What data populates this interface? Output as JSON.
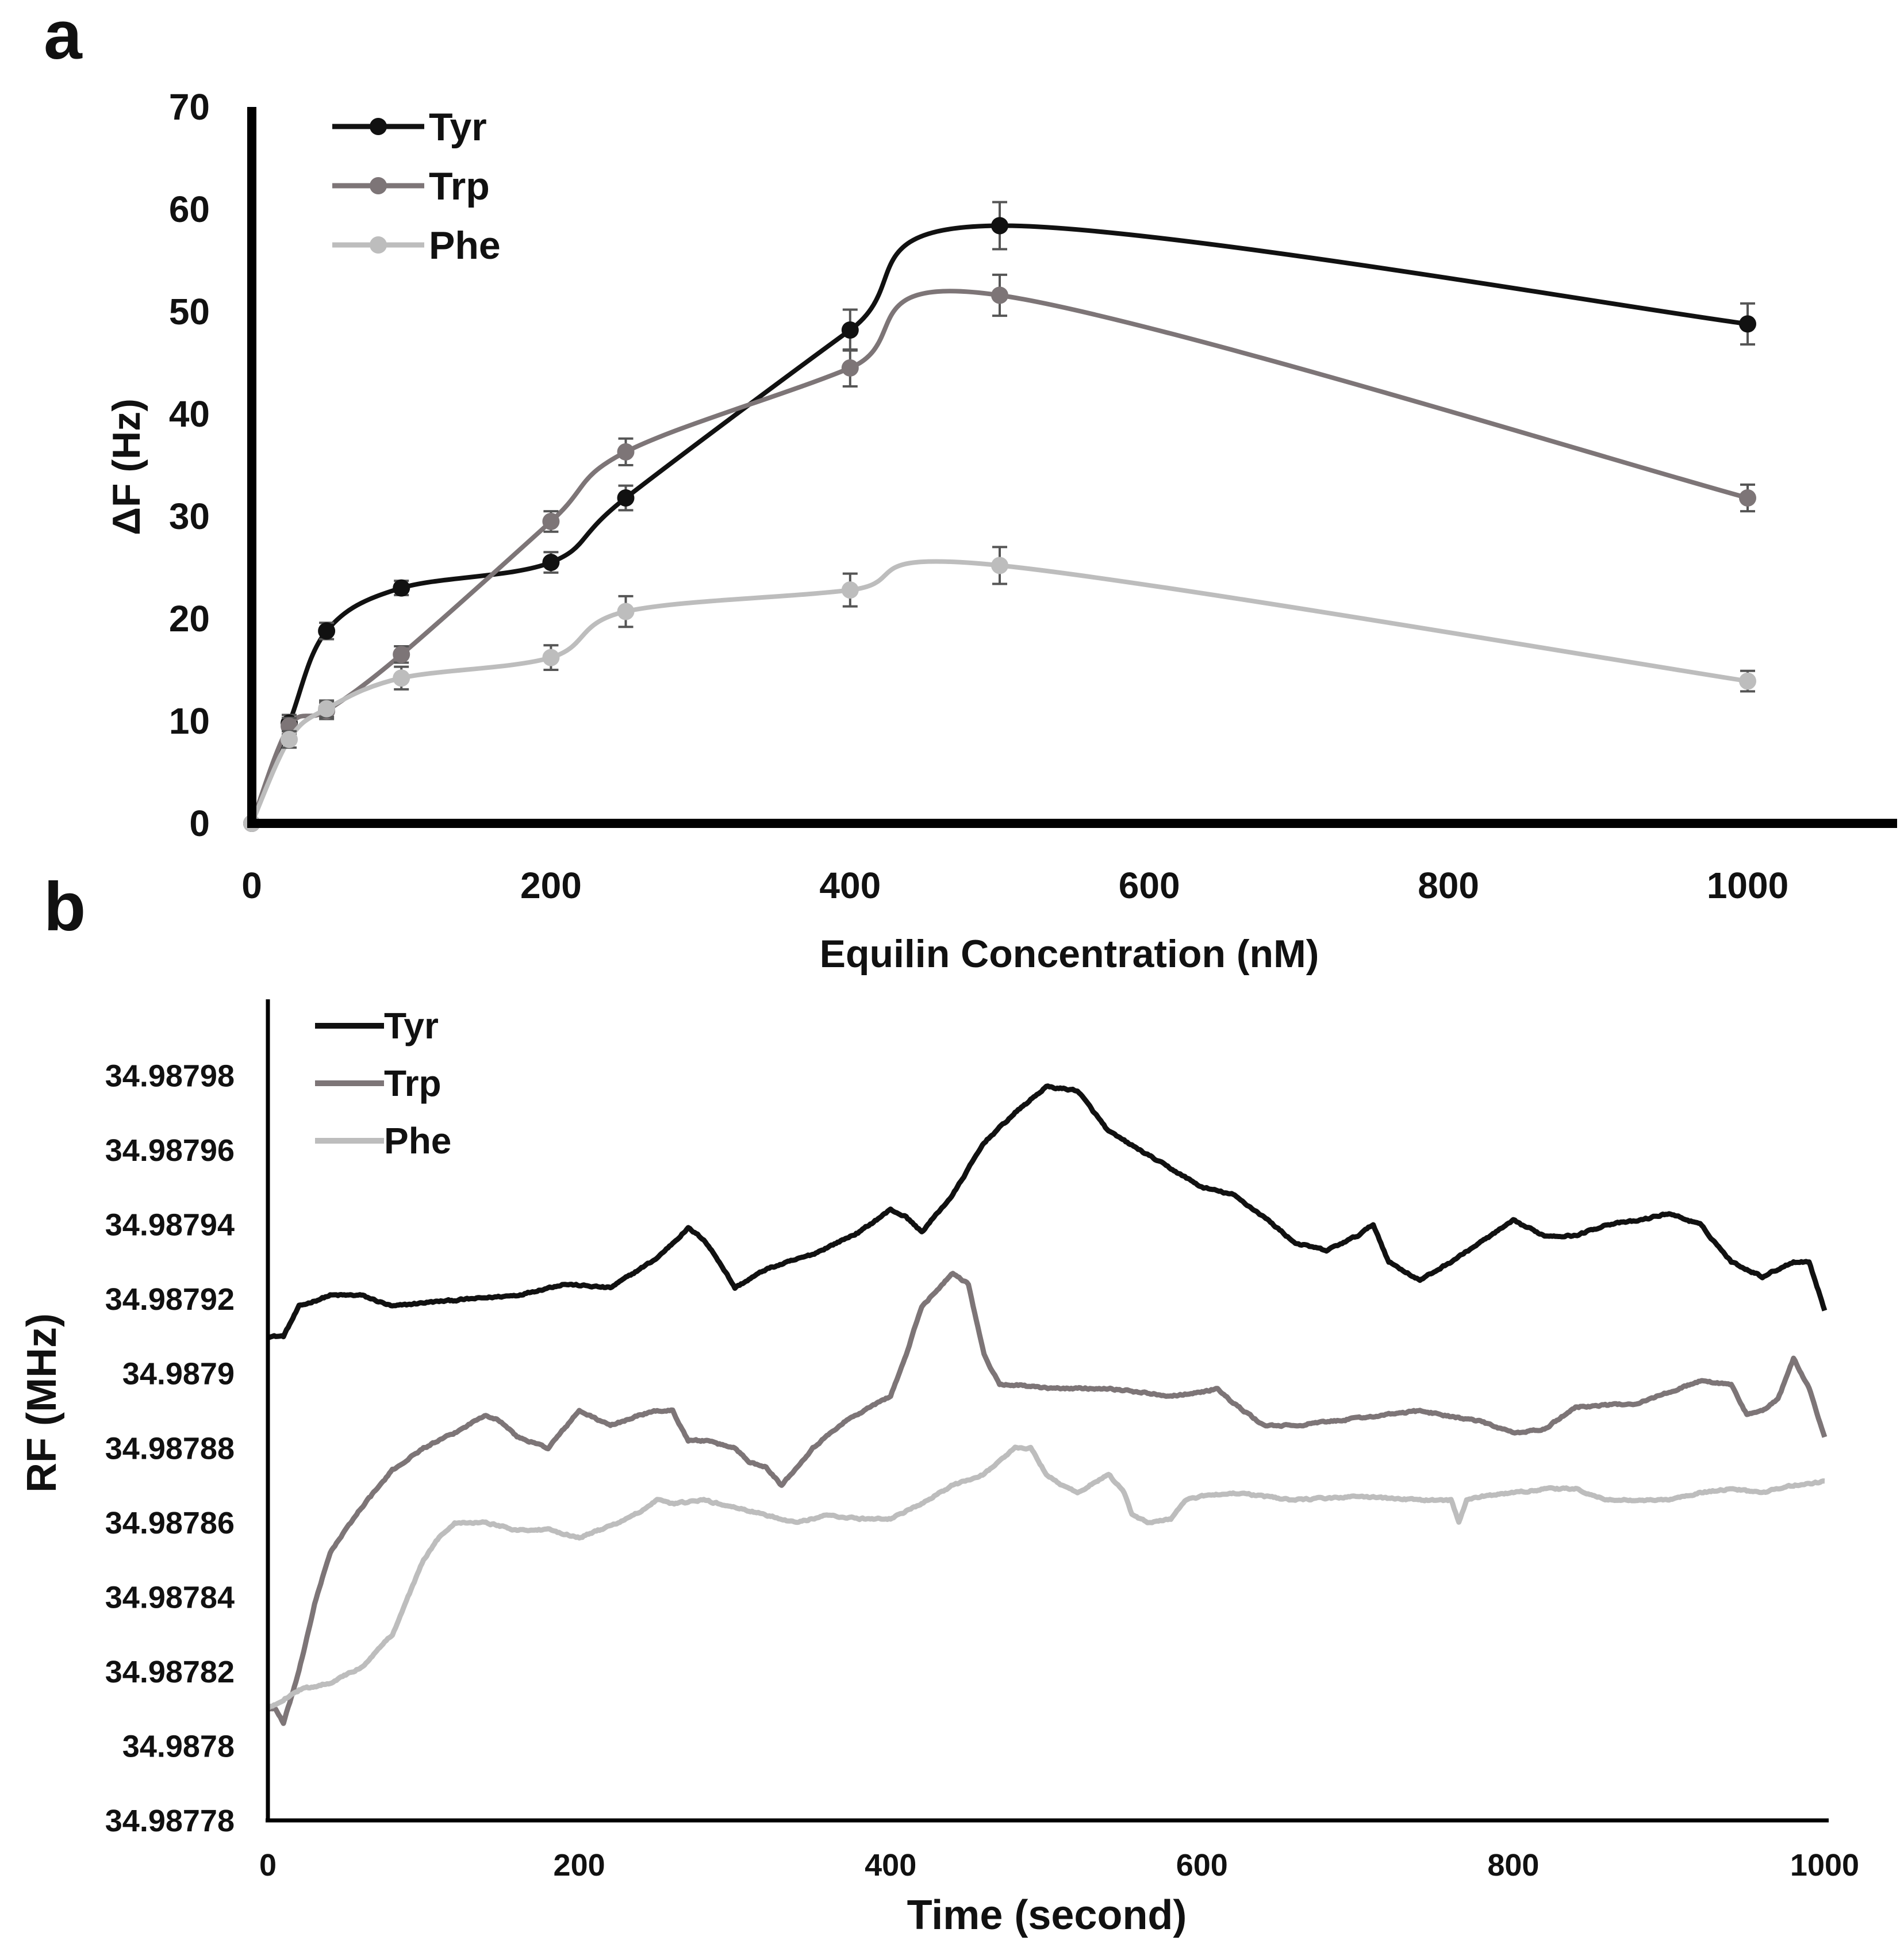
{
  "chart_data": [
    {
      "panel": "a",
      "type": "line",
      "xlabel": "Equilin Concentration (nM)",
      "ylabel": "ΔF (Hz)",
      "xlim": [
        0,
        1100
      ],
      "ylim": [
        0,
        70
      ],
      "xticks": [
        "0",
        "200",
        "400",
        "600",
        "800",
        "1000"
      ],
      "xtick_values": [
        0,
        200,
        400,
        600,
        800,
        1000
      ],
      "yticks": [
        "0",
        "10",
        "20",
        "30",
        "40",
        "50",
        "60",
        "70"
      ],
      "ytick_values": [
        0,
        10,
        20,
        30,
        40,
        50,
        60,
        70
      ],
      "grid": false,
      "legend_position": "top-left",
      "x": [
        0,
        25,
        50,
        100,
        200,
        250,
        400,
        500,
        1000
      ],
      "series": [
        {
          "name": "Tyr",
          "color": "#111111",
          "values": [
            0,
            9.8,
            18.8,
            23.0,
            25.5,
            31.8,
            48.2,
            58.4,
            48.8
          ],
          "errors": [
            0.3,
            0.8,
            0.8,
            0.7,
            1.0,
            1.2,
            2.0,
            2.3,
            2.0
          ]
        },
        {
          "name": "Trp",
          "color": "#7d7577",
          "values": [
            0,
            9.5,
            11.0,
            16.5,
            29.5,
            36.3,
            44.5,
            51.6,
            31.8
          ],
          "errors": [
            0.3,
            0.8,
            0.8,
            0.8,
            1.0,
            1.3,
            1.8,
            2.0,
            1.3
          ]
        },
        {
          "name": "Phe",
          "color": "#bdbdbd",
          "values": [
            0,
            8.2,
            11.2,
            14.2,
            16.2,
            20.7,
            22.8,
            25.2,
            13.9
          ],
          "errors": [
            0.3,
            0.8,
            0.8,
            1.1,
            1.2,
            1.5,
            1.6,
            1.8,
            1.0
          ]
        }
      ]
    },
    {
      "panel": "b",
      "type": "line",
      "xlabel": "Time (second)",
      "ylabel": "RF (MHz)",
      "xlim": [
        0,
        1000
      ],
      "ylim": [
        34.98778,
        34.988
      ],
      "xticks": [
        "0",
        "200",
        "400",
        "600",
        "800",
        "1000"
      ],
      "xtick_values": [
        0,
        200,
        400,
        600,
        800,
        1000
      ],
      "yticks": [
        "34.98778",
        "34.9878",
        "34.98782",
        "34.98784",
        "34.98786",
        "34.98788",
        "34.9879",
        "34.98792",
        "34.98794",
        "34.98796",
        "34.98798"
      ],
      "ytick_values": [
        34.98778,
        34.9878,
        34.98782,
        34.98784,
        34.98786,
        34.98788,
        34.9879,
        34.98792,
        34.98794,
        34.98796,
        34.98798
      ],
      "grid": false,
      "legend_position": "top-left",
      "noise_amplitude": 4e-07,
      "series": [
        {
          "name": "Tyr",
          "color": "#111111",
          "x": [
            0,
            10,
            20,
            40,
            60,
            80,
            100,
            130,
            160,
            190,
            220,
            250,
            270,
            280,
            290,
            300,
            320,
            350,
            380,
            400,
            410,
            420,
            440,
            460,
            480,
            500,
            520,
            540,
            560,
            600,
            620,
            640,
            660,
            680,
            700,
            710,
            720,
            740,
            760,
            800,
            820,
            840,
            860,
            880,
            900,
            920,
            940,
            960,
            980,
            990,
            1000
          ],
          "y": [
            34.98791,
            34.98791,
            34.987918,
            34.987921,
            34.987921,
            34.987918,
            34.987919,
            34.98792,
            34.987921,
            34.987924,
            34.987923,
            34.987931,
            34.987939,
            34.987936,
            34.98793,
            34.987923,
            34.987928,
            34.987932,
            34.987938,
            34.987944,
            34.987942,
            34.987938,
            34.987948,
            34.987962,
            34.98797,
            34.987977,
            34.987976,
            34.987965,
            34.98796,
            34.98795,
            34.987948,
            34.987942,
            34.987935,
            34.987933,
            34.987937,
            34.98794,
            34.98793,
            34.987925,
            34.98793,
            34.987941,
            34.987937,
            34.987937,
            34.98794,
            34.987941,
            34.987943,
            34.98794,
            34.98793,
            34.987926,
            34.98793,
            34.98793,
            34.987917
          ]
        },
        {
          "name": "Trp",
          "color": "#7d7577",
          "x": [
            0,
            5,
            10,
            20,
            30,
            40,
            60,
            80,
            100,
            120,
            140,
            150,
            160,
            180,
            190,
            200,
            220,
            240,
            250,
            260,
            270,
            280,
            300,
            310,
            320,
            330,
            350,
            370,
            400,
            410,
            420,
            440,
            450,
            460,
            470,
            480,
            500,
            540,
            580,
            600,
            610,
            620,
            640,
            660,
            700,
            740,
            780,
            800,
            820,
            840,
            880,
            920,
            940,
            950,
            960,
            970,
            980,
            990,
            1000
          ],
          "y": [
            34.98781,
            34.98781,
            34.987806,
            34.98782,
            34.987838,
            34.987852,
            34.987864,
            34.987874,
            34.98788,
            34.987884,
            34.987889,
            34.987887,
            34.987883,
            34.98788,
            34.987885,
            34.98789,
            34.987886,
            34.987889,
            34.98789,
            34.98789,
            34.987882,
            34.987882,
            34.98788,
            34.987876,
            34.987875,
            34.98787,
            34.98788,
            34.987887,
            34.987894,
            34.987905,
            34.987918,
            34.987927,
            34.987924,
            34.987905,
            34.987897,
            34.987897,
            34.987896,
            34.987896,
            34.987894,
            34.987895,
            34.987896,
            34.987892,
            34.987886,
            34.987886,
            34.987888,
            34.98789,
            34.987887,
            34.987884,
            34.987885,
            34.987891,
            34.987892,
            34.987898,
            34.987897,
            34.987889,
            34.98789,
            34.987893,
            34.987904,
            34.987896,
            34.987883
          ]
        },
        {
          "name": "Phe",
          "color": "#bdbdbd",
          "x": [
            0,
            20,
            40,
            60,
            80,
            90,
            100,
            110,
            120,
            140,
            160,
            180,
            200,
            220,
            240,
            250,
            260,
            280,
            300,
            320,
            340,
            360,
            380,
            400,
            420,
            440,
            460,
            480,
            490,
            500,
            510,
            520,
            540,
            550,
            555,
            565,
            580,
            590,
            600,
            620,
            640,
            660,
            700,
            740,
            760,
            765,
            770,
            780,
            800,
            820,
            840,
            860,
            880,
            900,
            920,
            940,
            960,
            980,
            1000
          ],
          "y": [
            34.98781,
            34.987815,
            34.987817,
            34.987821,
            34.98783,
            34.98784,
            34.98785,
            34.987856,
            34.98786,
            34.98786,
            34.987858,
            34.987858,
            34.987856,
            34.987859,
            34.987863,
            34.987866,
            34.987865,
            34.987866,
            34.987864,
            34.987862,
            34.98786,
            34.987862,
            34.987861,
            34.987861,
            34.987865,
            34.98787,
            34.987873,
            34.98788,
            34.98788,
            34.987873,
            34.98787,
            34.987868,
            34.987873,
            34.987868,
            34.987862,
            34.98786,
            34.987861,
            34.987866,
            34.987867,
            34.987868,
            34.987867,
            34.987866,
            34.987867,
            34.987866,
            34.987866,
            34.98786,
            34.987866,
            34.987867,
            34.987868,
            34.987869,
            34.987869,
            34.987866,
            34.987866,
            34.987866,
            34.987868,
            34.987869,
            34.987868,
            34.98787,
            34.987871
          ]
        }
      ]
    }
  ]
}
